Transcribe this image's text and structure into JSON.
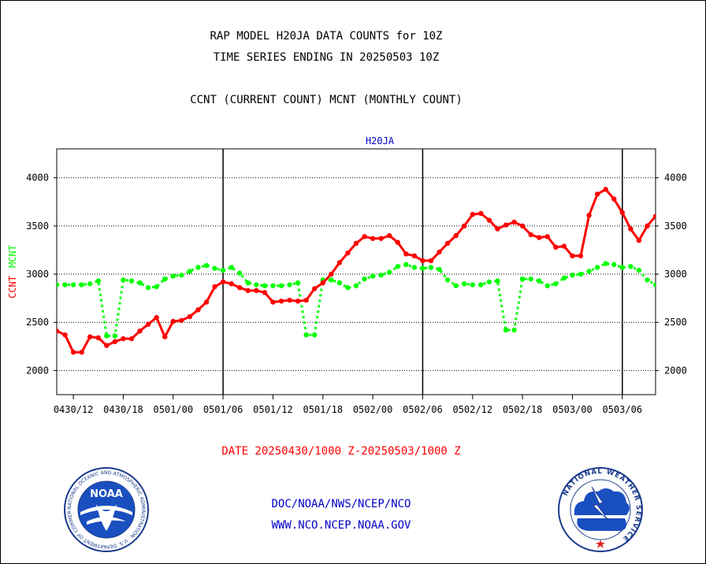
{
  "header": {
    "title": "RAP MODEL H20JA DATA COUNTS for 10Z",
    "subtitle": "TIME SERIES ENDING IN 20250503 10Z",
    "legend_line": "CCNT (CURRENT COUNT) MCNT (MONTHLY COUNT)"
  },
  "footer": {
    "date_range": "DATE 20250430/1000 Z-20250503/1000 Z",
    "org_path": "DOC/NOAA/NWS/NCEP/NCO",
    "website": "WWW.NCO.NCEP.NOAA.GOV"
  },
  "logos": {
    "noaa_text": "NOAA",
    "nws_text": "NATIONAL WEATHER SERVICE",
    "noaa_ring_text": "NATIONAL OCEANIC AND ATMOSPHERIC ADMINISTRATION · U.S. DEPARTMENT OF COMMERCE"
  },
  "chart_data": {
    "type": "line",
    "title": "H20JA",
    "ylabel_parts": [
      "CCNT",
      "MCNT"
    ],
    "ylim": [
      1750,
      4300
    ],
    "yticks": [
      2000,
      2500,
      3000,
      3500,
      4000
    ],
    "xlim": [
      0,
      72
    ],
    "xticks": [
      {
        "x": 2,
        "label": "0430/12"
      },
      {
        "x": 8,
        "label": "0430/18"
      },
      {
        "x": 14,
        "label": "0501/00"
      },
      {
        "x": 20,
        "label": "0501/06"
      },
      {
        "x": 26,
        "label": "0501/12"
      },
      {
        "x": 32,
        "label": "0501/18"
      },
      {
        "x": 38,
        "label": "0502/00"
      },
      {
        "x": 44,
        "label": "0502/06"
      },
      {
        "x": 50,
        "label": "0502/12"
      },
      {
        "x": 56,
        "label": "0502/18"
      },
      {
        "x": 62,
        "label": "0503/00"
      },
      {
        "x": 68,
        "label": "0503/06"
      }
    ],
    "day_boundaries": [
      20,
      44,
      68
    ],
    "grid": true,
    "colors": {
      "ccnt": "#ff0000",
      "mcnt": "#00ff00",
      "title": "#0000c8",
      "footer_red": "#ff0000",
      "footer_blue": "#0000c8"
    },
    "series": [
      {
        "name": "CCNT",
        "style": "solid",
        "x": [
          0,
          1,
          2,
          3,
          4,
          5,
          6,
          7,
          8,
          9,
          10,
          11,
          12,
          13,
          14,
          15,
          16,
          17,
          18,
          19,
          20,
          21,
          22,
          23,
          24,
          25,
          26,
          27,
          28,
          29,
          30,
          31,
          32,
          33,
          34,
          35,
          36,
          37,
          38,
          39,
          40,
          41,
          42,
          43,
          44,
          45,
          46,
          47,
          48,
          49,
          50,
          51,
          52,
          53,
          54,
          55,
          56,
          57,
          58,
          59,
          60,
          61,
          62,
          63,
          64,
          65,
          66,
          67,
          68,
          69,
          70,
          71,
          72
        ],
        "values": [
          2410,
          2370,
          2190,
          2190,
          2350,
          2340,
          2260,
          2300,
          2330,
          2330,
          2410,
          2480,
          2550,
          2350,
          2510,
          2520,
          2560,
          2630,
          2710,
          2870,
          2920,
          2900,
          2860,
          2830,
          2830,
          2810,
          2710,
          2720,
          2730,
          2720,
          2730,
          2850,
          2910,
          3000,
          3120,
          3220,
          3320,
          3390,
          3370,
          3370,
          3400,
          3330,
          3210,
          3190,
          3140,
          3140,
          3230,
          3320,
          3400,
          3500,
          3620,
          3630,
          3560,
          3470,
          3510,
          3540,
          3500,
          3410,
          3380,
          3390,
          3280,
          3290,
          3190,
          3190,
          3610,
          3830,
          3880,
          3780,
          3640,
          3470,
          3350,
          3500,
          3600
        ]
      },
      {
        "name": "MCNT",
        "style": "dotted",
        "x": [
          0,
          1,
          2,
          3,
          4,
          5,
          6,
          7,
          8,
          9,
          10,
          11,
          12,
          13,
          14,
          15,
          16,
          17,
          18,
          19,
          20,
          21,
          22,
          23,
          24,
          25,
          26,
          27,
          28,
          29,
          30,
          31,
          32,
          33,
          34,
          35,
          36,
          37,
          38,
          39,
          40,
          41,
          42,
          43,
          44,
          45,
          46,
          47,
          48,
          49,
          50,
          51,
          52,
          53,
          54,
          55,
          56,
          57,
          58,
          59,
          60,
          61,
          62,
          63,
          64,
          65,
          66,
          67,
          68,
          69,
          70,
          71,
          72
        ],
        "values": [
          2890,
          2890,
          2890,
          2890,
          2900,
          2930,
          2360,
          2360,
          2940,
          2930,
          2910,
          2860,
          2870,
          2950,
          2980,
          2990,
          3030,
          3070,
          3090,
          3060,
          3040,
          3070,
          3010,
          2910,
          2890,
          2880,
          2880,
          2880,
          2890,
          2910,
          2370,
          2370,
          2940,
          2940,
          2910,
          2860,
          2880,
          2950,
          2980,
          2990,
          3020,
          3080,
          3100,
          3070,
          3060,
          3070,
          3050,
          2940,
          2880,
          2900,
          2890,
          2890,
          2920,
          2930,
          2420,
          2420,
          2950,
          2950,
          2930,
          2880,
          2900,
          2960,
          2990,
          3000,
          3030,
          3070,
          3110,
          3100,
          3070,
          3080,
          3040,
          2940,
          2890
        ]
      }
    ]
  }
}
